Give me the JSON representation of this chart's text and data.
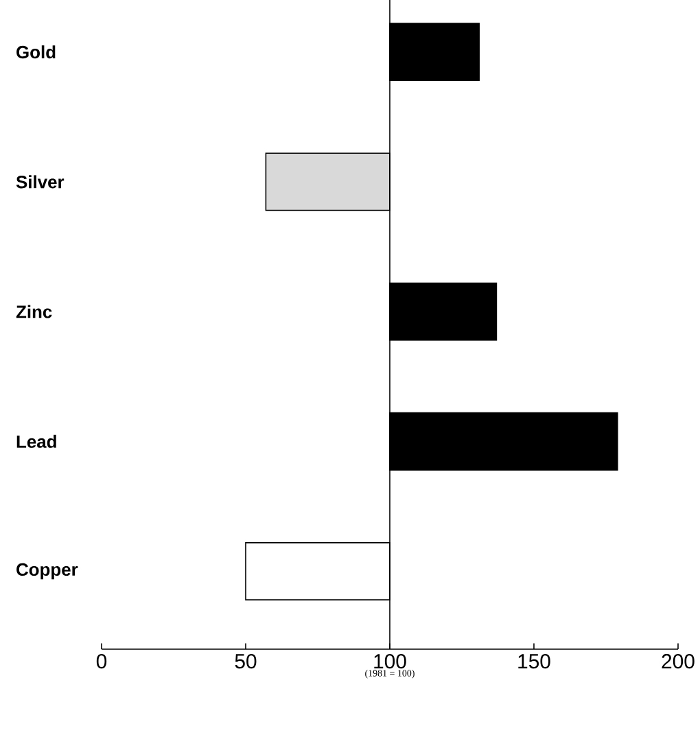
{
  "chart_data": {
    "type": "bar",
    "orientation": "horizontal",
    "categories": [
      "Gold",
      "Silver",
      "Zinc",
      "Lead",
      "Copper"
    ],
    "values": [
      31,
      -43,
      37,
      79,
      -50
    ],
    "base": [
      100,
      100,
      100,
      100,
      100
    ],
    "colors": [
      "#000000",
      "#d9d9d9",
      "#000000",
      "#000000",
      "#ffffff"
    ],
    "xlabel": "(1981 = 100)",
    "xlim": [
      0,
      200
    ],
    "xticks": [
      0,
      50,
      100,
      150,
      200
    ],
    "ref_lines": [
      {
        "axis": "x",
        "value": 100
      }
    ],
    "grid": false
  }
}
